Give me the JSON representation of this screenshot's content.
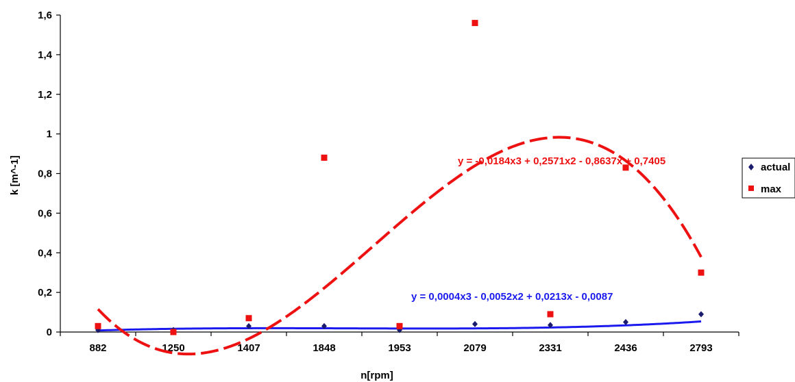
{
  "chart_data": {
    "type": "scatter",
    "title": "",
    "xlabel": "n[rpm]",
    "ylabel": "k [m^-1]",
    "categories": [
      "882",
      "1250",
      "1407",
      "1848",
      "1953",
      "2079",
      "2331",
      "2436",
      "2793"
    ],
    "ylim": [
      0,
      1.6
    ],
    "yticks": [
      "0",
      "0,2",
      "0,4",
      "0,6",
      "0,8",
      "1",
      "1,2",
      "1,4",
      "1,6"
    ],
    "grid": false,
    "legend_position": "right",
    "series": [
      {
        "name": "actual",
        "color": "#1a1a6e",
        "marker": "diamond",
        "values": [
          0.01,
          0.01,
          0.03,
          0.03,
          0.01,
          0.04,
          0.035,
          0.05,
          0.09
        ],
        "trendline": {
          "type": "polynomial-3",
          "coefficients": [
            0.0004,
            -0.0052,
            0.0213,
            -0.0087
          ],
          "style": "solid",
          "color": "#1a1aee",
          "equation": "y = 0,0004x3 - 0,0052x2 + 0,0213x - 0,0087"
        }
      },
      {
        "name": "max",
        "color": "#ee1111",
        "marker": "square",
        "values": [
          0.03,
          0.0,
          0.07,
          0.88,
          0.03,
          1.56,
          0.09,
          0.83,
          0.3
        ],
        "trendline": {
          "type": "polynomial-3",
          "coefficients": [
            -0.0184,
            0.2571,
            -0.8637,
            0.7405
          ],
          "style": "dashed",
          "color": "#ee1111",
          "equation": "y = -0,0184x3 + 0,2571x2 - 0,8637x + 0,7405"
        }
      }
    ]
  }
}
